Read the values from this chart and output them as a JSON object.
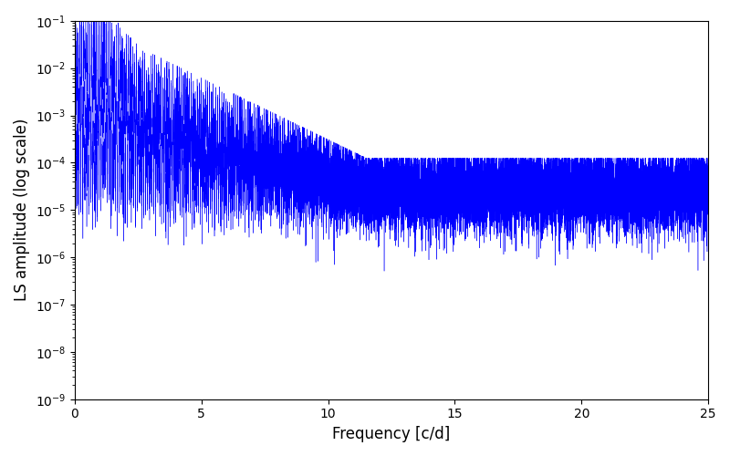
{
  "xlabel": "Frequency [c/d]",
  "ylabel": "LS amplitude (log scale)",
  "xlim": [
    0,
    25
  ],
  "ylim": [
    1e-09,
    0.1
  ],
  "line_color": "blue",
  "line_width": 0.5,
  "background_color": "#ffffff",
  "seed": 42,
  "n_points": 8000,
  "freq_max": 25.0,
  "figsize": [
    8.0,
    5.0
  ],
  "dpi": 100
}
